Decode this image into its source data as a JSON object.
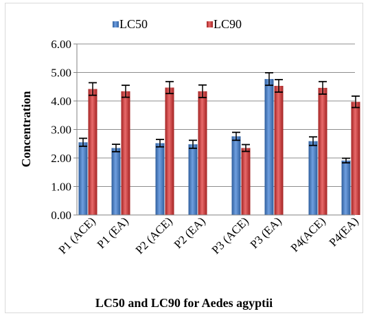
{
  "chart_data": {
    "type": "bar",
    "title": "LC50 and LC90  for Aedes agyptii",
    "xlabel": "",
    "ylabel": "Concentration",
    "ylim": [
      0,
      6
    ],
    "yticks": [
      "0.00",
      "1.00",
      "2.00",
      "3.00",
      "4.00",
      "5.00",
      "6.00"
    ],
    "grid": true,
    "legend_position": "top",
    "categories": [
      "P1 (ACE)",
      "P1 (EA)",
      "P2  (ACE)",
      "P2 (EA)",
      "P3 (ACE)",
      "P3 (EA)",
      "P4(ACE)",
      "P4(EA)"
    ],
    "series": [
      {
        "name": "LC50",
        "color": "#4a7fc8",
        "values": [
          2.55,
          2.35,
          2.52,
          2.48,
          2.76,
          4.77,
          2.59,
          1.91
        ],
        "errors": [
          0.14,
          0.13,
          0.13,
          0.14,
          0.14,
          0.22,
          0.15,
          0.08
        ]
      },
      {
        "name": "LC90",
        "color": "#cc3a3a",
        "values": [
          4.42,
          4.34,
          4.47,
          4.34,
          2.35,
          4.53,
          4.46,
          3.97
        ],
        "errors": [
          0.22,
          0.21,
          0.21,
          0.22,
          0.12,
          0.22,
          0.22,
          0.2
        ]
      }
    ]
  }
}
